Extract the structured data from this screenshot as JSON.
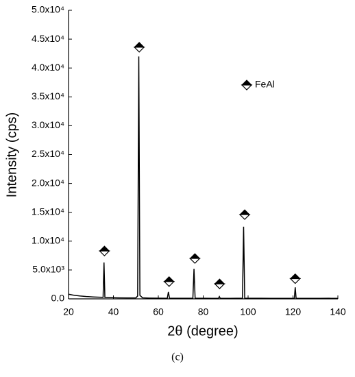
{
  "chart_data": {
    "type": "line",
    "xlabel": "2θ (degree)",
    "ylabel": "Intensity (cps)",
    "caption": "(c)",
    "xlim": [
      20,
      140
    ],
    "xticks": [
      20,
      40,
      60,
      80,
      100,
      120,
      140
    ],
    "ylim": [
      0,
      50000
    ],
    "yticks": [
      {
        "value": 0,
        "label": "0.0"
      },
      {
        "value": 5000,
        "label": "5.0x10³"
      },
      {
        "value": 10000,
        "label": "1.0x10⁴"
      },
      {
        "value": 15000,
        "label": "1.5x10⁴"
      },
      {
        "value": 20000,
        "label": "2.0x10⁴"
      },
      {
        "value": 25000,
        "label": "2.5x10⁴"
      },
      {
        "value": 30000,
        "label": "3.0x10⁴"
      },
      {
        "value": 35000,
        "label": "3.5x10⁴"
      },
      {
        "value": 40000,
        "label": "4.0x10⁴"
      },
      {
        "value": 45000,
        "label": "4.5x10⁴"
      },
      {
        "value": 50000,
        "label": "5.0x10⁴"
      }
    ],
    "legend": "upper right",
    "series": [
      {
        "color": "#000000",
        "x": [
          20,
          22,
          25,
          28,
          31,
          34,
          35.4,
          35.8,
          36.2,
          38,
          42,
          46,
          50,
          50.8,
          51.3,
          51.8,
          53,
          56,
          60,
          64,
          64.5,
          65,
          70,
          75.4,
          75.9,
          76.4,
          80,
          84,
          86.8,
          87.2,
          87.6,
          92,
          97.5,
          98,
          98.5,
          102,
          110,
          116,
          120.6,
          121,
          121.4,
          126,
          132,
          136,
          137,
          140
        ],
        "values": [
          800,
          650,
          500,
          400,
          330,
          280,
          260,
          6300,
          250,
          220,
          180,
          160,
          170,
          500,
          42000,
          600,
          180,
          140,
          120,
          110,
          1200,
          110,
          100,
          110,
          5200,
          120,
          100,
          95,
          100,
          400,
          100,
          95,
          120,
          12500,
          120,
          100,
          95,
          95,
          100,
          2000,
          100,
          95,
          95,
          110,
          90,
          95
        ]
      },
      {
        "name": "FeAl",
        "color": "#000000",
        "marker": "diamond",
        "x": [
          36,
          51.5,
          64.8,
          76.3,
          87.3,
          98.5,
          121
        ],
        "values": [
          8300,
          43600,
          3000,
          7000,
          2600,
          14600,
          3500
        ]
      }
    ]
  }
}
